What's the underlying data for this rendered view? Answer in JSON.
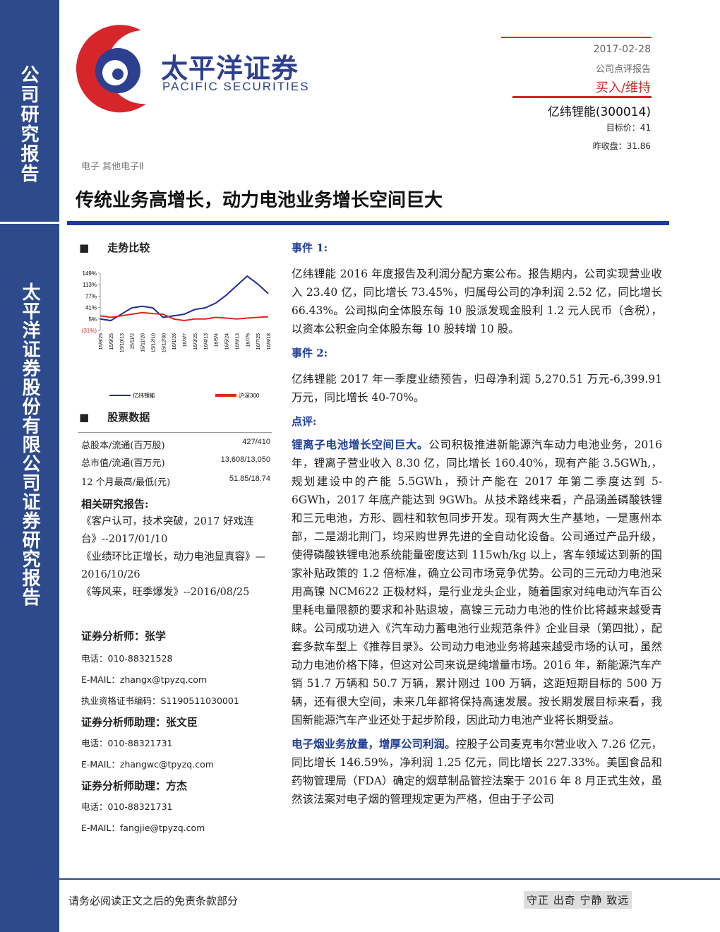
{
  "header": {
    "logo_cn": "太平洋证券",
    "logo_en": "PACIFIC SECURITIES",
    "date": "2017-02-28",
    "report_type": "公司点评报告",
    "rating": "买入/维持",
    "stock": "亿纬锂能(300014)",
    "target_price": "目标价：41",
    "prev_close": "昨收盘：31.86"
  },
  "sidebar": {
    "top": "公司研究报告",
    "bottom": "太平洋证券股份有限公司证券研究报告"
  },
  "category": "电子 其他电子Ⅱ",
  "title": "传统业务高增长，动力电池业务增长空间巨大",
  "trend": {
    "heading": "走势比较",
    "chart": {
      "type": "line",
      "categories": [
        "15/8/25",
        "15/9/25",
        "15/10/13",
        "15/11/2",
        "15/11/20",
        "15/12/10",
        "15/12/30",
        "16/1/26",
        "16/3/7",
        "16/3/25",
        "16/4/13",
        "16/5/4",
        "16/5/24",
        "16/6/13",
        "16/7/5",
        "16/7/25",
        "16/8/18"
      ],
      "series": [
        {
          "name": "亿纬锂能",
          "color": "#1f2a9c",
          "values": [
            5,
            0,
            20,
            40,
            45,
            40,
            10,
            15,
            20,
            35,
            40,
            55,
            80,
            110,
            140,
            115,
            85
          ]
        },
        {
          "name": "沪深300",
          "color": "#e0261b",
          "values": [
            15,
            10,
            15,
            20,
            25,
            22,
            20,
            5,
            0,
            5,
            5,
            10,
            8,
            5,
            8,
            10,
            12
          ]
        }
      ],
      "ylim": [
        -31,
        149
      ],
      "yticks": [
        {
          "value": 149,
          "label": "149%"
        },
        {
          "value": 113,
          "label": "113%"
        },
        {
          "value": 77,
          "label": "77%"
        },
        {
          "value": 41,
          "label": "41%"
        },
        {
          "value": 5,
          "label": "5%"
        },
        {
          "value": -31,
          "label": "(31%)"
        }
      ]
    }
  },
  "stock_data": {
    "heading": "股票数据",
    "rows": [
      [
        "总股本/流通(百万股)",
        "427/410"
      ],
      [
        "总市值/流通(百万元)",
        "13,608/13,050"
      ],
      [
        "12 个月最高/最低(元)",
        "51.85/18.74"
      ]
    ]
  },
  "related": {
    "heading": "相关研究报告:",
    "items": [
      "《客户认可，技术突破，2017 好戏连台》--2017/01/10",
      "《业绩环比正增长，动力电池显真容》—2016/10/26",
      "《等风来，旺季爆发》--2016/08/25"
    ]
  },
  "analysts": [
    {
      "role": "证券分析师：张学",
      "phone": "电话：010-88321528",
      "email": "E-MAIL：zhangx@tpyzq.com",
      "license": "执业资格证书编码：S1190511030001"
    },
    {
      "role": "证券分析师助理：张文臣",
      "phone": "电话：010-88321731",
      "email": "E-MAIL：zhangwc@tpyzq.com"
    },
    {
      "role": "证券分析师助理：方杰",
      "phone": "电话：010-88321731",
      "email": "E-MAIL：fangjie@tpyzq.com"
    }
  ],
  "events": [
    {
      "heading": "事件 1:",
      "text": "亿纬锂能 2016 年度报告及利润分配方案公布。报告期内，公司实现营业收入 23.40 亿，同比增长 73.45%，归属母公司的净利润 2.52 亿，同比增长 66.43%。公司拟向全体股东每 10 股派发现金股利 1.2 元人民币（含税），以资本公积金向全体股东每 10 股转增 10 股。"
    },
    {
      "heading": "事件 2:",
      "text": "亿纬锂能 2017 年一季度业绩预告，归母净利润 5,270.51 万元-6,399.91 万元，同比增长 40-70%。"
    }
  ],
  "review": {
    "heading": "点评:",
    "paragraphs": [
      {
        "lead": "锂离子电池增长空间巨大。",
        "body": "公司积极推进新能源汽车动力电池业务，2016 年，锂离子营业收入 8.30 亿，同比增长 160.40%，现有产能 3.5GWh,，规划建设中的产能 5.5GWh，预计产能在 2017 年第二季度达到 5-6GWh，2017 年底产能达到 9GWh。从技术路线来看，产品涵盖磷酸铁锂和三元电池，方形、圆柱和软包同步开发。现有两大生产基地，一是惠州本部，二是湖北荆门，均采购世界先进的全自动化设备。公司通过产品升级，使得磷酸铁锂电池系统能量密度达到 115wh/kg 以上，客车领域达到新的国家补贴政策的 1.2 倍标准，确立公司市场竞争优势。公司的三元动力电池采用高镍 NCM622 正极材料，是行业龙头企业，随着国家对纯电动汽车百公里耗电量限额的要求和补贴退坡，高镍三元动力电池的性价比将越来越受青睐。公司成功进入《汽车动力蓄电池行业规范条件》企业目录（第四批），配套多款车型上《推荐目录》。公司动力电池业务将越来越受市场的认可，虽然动力电池价格下降，但这对公司来说是纯增量市场。2016 年，新能源汽车产销 51.7 万辆和 50.7 万辆，累计刚过 100 万辆，这距短期目标的 500 万辆，还有很大空间，未来几年都将保持高速发展。按长期发展目标来看，我国新能源汽车产业还处于起步阶段，因此动力电池产业将长期受益。"
      },
      {
        "lead": "电子烟业务放量，增厚公司利润。",
        "body": "控股子公司麦克韦尔营业收入 7.26 亿元，同比增长 146.59%，净利润 1.25 亿元，同比增长 227.33%。美国食品和药物管理局（FDA）确定的烟草制品管控法案于 2016 年 8 月正式生效，虽然该法案对电子烟的管理规定更为严格，但由于子公司"
      }
    ]
  },
  "footer": {
    "disclaimer": "请务必阅读正文之后的免责条款部分",
    "motto": "守正 出奇 宁静 致远"
  }
}
